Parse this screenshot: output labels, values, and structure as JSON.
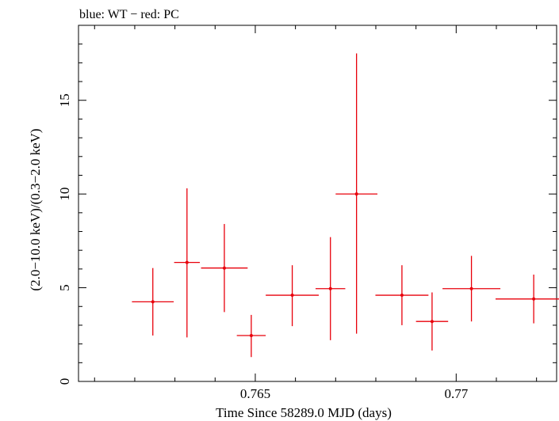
{
  "chart_data": {
    "type": "scatter",
    "title": "blue: WT − red: PC",
    "xlabel": "Time Since 58289.0 MJD (days)",
    "ylabel": "(2.0−10.0 keV)/(0.3−2.0 keV)",
    "xlim": [
      0.7606,
      0.7725
    ],
    "ylim": [
      0,
      19
    ],
    "x_ticks": [
      0.765,
      0.77
    ],
    "x_tick_labels": [
      "0.765",
      "0.77"
    ],
    "y_ticks": [
      0,
      5,
      10,
      15
    ],
    "y_tick_labels": [
      "0",
      "5",
      "10",
      "15"
    ],
    "grid": false,
    "series": [
      {
        "color": "#e8000b",
        "points": [
          {
            "x": 0.76245,
            "xerr": 0.00052,
            "y": 4.25,
            "ylo": 2.45,
            "yhi": 6.05
          },
          {
            "x": 0.7633,
            "xerr": 0.00032,
            "y": 6.35,
            "ylo": 2.35,
            "yhi": 10.3
          },
          {
            "x": 0.76423,
            "xerr": 0.00058,
            "y": 6.05,
            "ylo": 3.7,
            "yhi": 8.4
          },
          {
            "x": 0.7649,
            "xerr": 0.00036,
            "y": 2.45,
            "ylo": 1.3,
            "yhi": 3.55
          },
          {
            "x": 0.76592,
            "xerr": 0.00066,
            "y": 4.6,
            "ylo": 2.95,
            "yhi": 6.2
          },
          {
            "x": 0.76687,
            "xerr": 0.00037,
            "y": 4.95,
            "ylo": 2.2,
            "yhi": 7.7
          },
          {
            "x": 0.76752,
            "xerr": 0.00052,
            "y": 10.0,
            "ylo": 2.55,
            "yhi": 17.5
          },
          {
            "x": 0.76865,
            "xerr": 0.00066,
            "y": 4.6,
            "ylo": 3.0,
            "yhi": 6.2
          },
          {
            "x": 0.7694,
            "xerr": 0.0004,
            "y": 3.2,
            "ylo": 1.65,
            "yhi": 4.75
          },
          {
            "x": 0.77038,
            "xerr": 0.00072,
            "y": 4.95,
            "ylo": 3.2,
            "yhi": 6.7
          },
          {
            "x": 0.77193,
            "xerr": 0.00095,
            "y": 4.4,
            "ylo": 3.1,
            "yhi": 5.7
          }
        ]
      }
    ]
  }
}
